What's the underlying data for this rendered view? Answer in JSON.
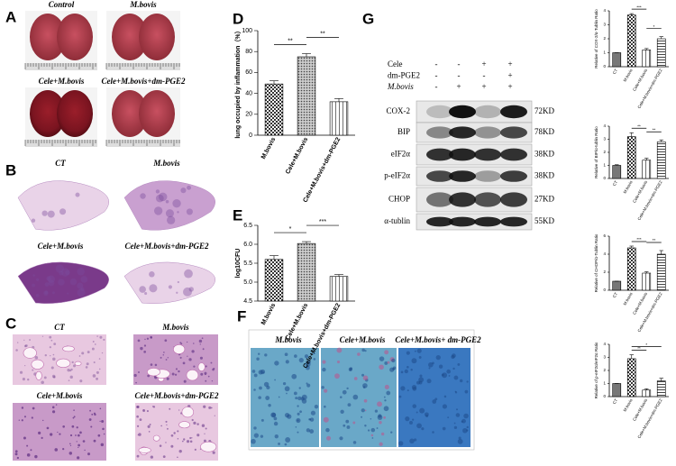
{
  "panel_labels": [
    "A",
    "B",
    "C",
    "D",
    "E",
    "F",
    "G"
  ],
  "panel_a": {
    "captions": [
      "Control",
      "M.bovis",
      "Cele+M.bovis",
      "Cele+M.bovis+dm-PGE2"
    ]
  },
  "panel_b": {
    "captions": [
      "CT",
      "M.bovis",
      "Cele+M.bovis",
      "Cele+M.bovis+dm-PGE2"
    ]
  },
  "panel_c": {
    "captions": [
      "CT",
      "M.bovis",
      "Cele+M.bovis",
      "Cele+M.bovis+dm-PGE2"
    ]
  },
  "panel_f": {
    "captions": [
      "M.bovis",
      "Cele+M.bovis",
      "Cele+M.bovis+ dm-PGE2"
    ]
  },
  "panel_g": {
    "treatments": [
      {
        "name": "Cele",
        "signs": [
          "-",
          "-",
          "+",
          "+"
        ]
      },
      {
        "name": "dm-PGE2",
        "signs": [
          "-",
          "-",
          "-",
          "+"
        ]
      },
      {
        "name": "M.bovis",
        "signs": [
          "-",
          "+",
          "+",
          "+"
        ]
      }
    ],
    "proteins": [
      {
        "name": "COX-2",
        "size": "72KD"
      },
      {
        "name": "BIP",
        "size": "78KD"
      },
      {
        "name": "eIF2α",
        "size": "38KD"
      },
      {
        "name": "p-eIF2α",
        "size": "38KD"
      },
      {
        "name": "CHOP",
        "size": "27KD"
      },
      {
        "name": "α-tublin",
        "size": "55KD"
      }
    ]
  },
  "chart_data": [
    {
      "type": "bar",
      "ylabel": "lung occupied by inflammation（%）",
      "categories": [
        "M.bovis",
        "Cele+M.bovis",
        "Cele+M.bovis+dm-PGE2"
      ],
      "values": [
        49,
        75,
        32
      ],
      "errors": [
        3,
        3,
        3
      ],
      "fills": [
        "check",
        "dots",
        "lines"
      ],
      "ylim": [
        0,
        100
      ],
      "yticks": [
        0,
        20,
        40,
        60,
        80,
        100
      ],
      "annotations": [
        {
          "text": "**",
          "bars": [
            0,
            1
          ]
        },
        {
          "text": "**",
          "bars": [
            1,
            2
          ]
        }
      ]
    },
    {
      "type": "bar",
      "ylabel": "log10CFU",
      "categories": [
        "M.bovis",
        "Cele+M.bovis",
        "Cele+M.bovis+dm-PGE2"
      ],
      "values": [
        5.6,
        6.02,
        5.15
      ],
      "errors": [
        0.1,
        0.05,
        0.05
      ],
      "fills": [
        "check",
        "dots",
        "lines"
      ],
      "ylim": [
        4.5,
        6.5
      ],
      "yticks": [
        4.5,
        {
          "value": 5,
          "label": "5.0"
        },
        5.5,
        {
          "value": 6,
          "label": "6.0"
        },
        6.5
      ],
      "annotations": [
        {
          "text": "*",
          "bars": [
            0,
            1
          ]
        },
        {
          "text": "***",
          "bars": [
            1,
            2
          ]
        }
      ]
    },
    {
      "type": "bar",
      "ylabel": "Relative of COX-2/α-Tublin Ratio",
      "categories": [
        "CT",
        "M.bovis",
        "Cele+M.bovis",
        "Cele+M.bovis+dm-PGE2"
      ],
      "values": [
        1,
        3.7,
        1.2,
        2.0
      ],
      "errors": [
        0,
        0.1,
        0.1,
        0.15
      ],
      "fills": [
        "gray",
        "check",
        "lines",
        "hlines"
      ],
      "ylim": [
        0,
        4
      ],
      "yticks": [
        0,
        1,
        2,
        3,
        4
      ],
      "annotations": [
        {
          "text": "***",
          "bars": [
            1,
            2
          ]
        },
        {
          "text": "*",
          "bars": [
            2,
            3
          ]
        }
      ]
    },
    {
      "type": "bar",
      "ylabel": "Relative of BIP/α-tublin Ratio",
      "categories": [
        "CT",
        "M.bovis",
        "Cele+M.bovis",
        "Cele+M.bovis+dm-PGE2"
      ],
      "values": [
        1,
        3.2,
        1.4,
        2.8
      ],
      "errors": [
        0.05,
        0.3,
        0.15,
        0.15
      ],
      "fills": [
        "gray",
        "check",
        "lines",
        "hlines"
      ],
      "ylim": [
        0,
        4
      ],
      "yticks": [
        0,
        1,
        2,
        3,
        4
      ],
      "annotations": [
        {
          "text": "**",
          "bars": [
            1,
            2
          ]
        },
        {
          "text": "**",
          "bars": [
            2,
            3
          ]
        }
      ]
    },
    {
      "type": "bar",
      "ylabel": "Relative of CHOP/α-Tublin Ratio",
      "categories": [
        "CT",
        "M.bovis",
        "Cele+M.bovis",
        "Cele+M.bovis+dm-PGE2"
      ],
      "values": [
        1,
        4.7,
        1.9,
        4.0
      ],
      "errors": [
        0,
        0.2,
        0.15,
        0.4
      ],
      "fills": [
        "gray",
        "check",
        "lines",
        "hlines"
      ],
      "ylim": [
        0,
        6
      ],
      "yticks": [
        0,
        2,
        4,
        6
      ],
      "annotations": [
        {
          "text": "***",
          "bars": [
            1,
            2
          ]
        },
        {
          "text": "**",
          "bars": [
            2,
            3
          ]
        }
      ]
    },
    {
      "type": "bar",
      "ylabel": "Relative of p-eIF2α/eIF2α Ratio",
      "categories": [
        "CT",
        "M.bovis",
        "Cele+M.bovis",
        "Cele+M.bovis+dm-PGE2"
      ],
      "values": [
        1,
        2.9,
        0.5,
        1.2
      ],
      "errors": [
        0,
        0.3,
        0.1,
        0.2
      ],
      "fills": [
        "gray",
        "check",
        "lines",
        "hlines"
      ],
      "ylim": [
        0,
        4
      ],
      "yticks": [
        0,
        1,
        2,
        3,
        4
      ],
      "annotations": [
        {
          "text": "**",
          "bars": [
            1,
            2
          ]
        },
        {
          "text": "*",
          "bars": [
            1,
            3
          ]
        }
      ]
    }
  ]
}
